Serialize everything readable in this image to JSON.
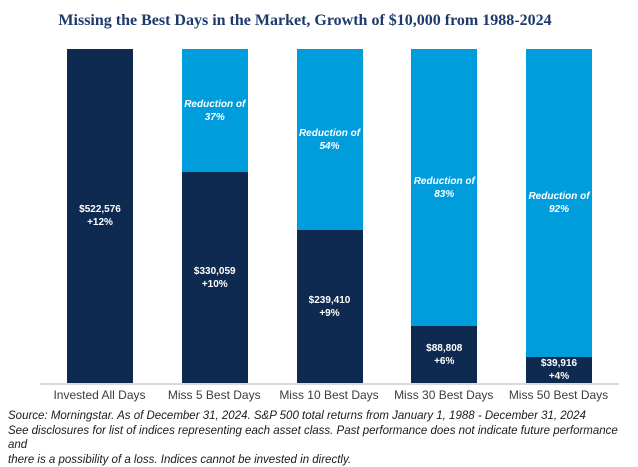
{
  "title": "Missing the Best Days in the Market, Growth of $10,000 from 1988-2024",
  "chart_data": {
    "type": "bar",
    "subtype": "stacked-column",
    "title": "Missing the Best Days in the Market, Growth of $10,000 from 1988-2024",
    "xlabel": "",
    "ylabel": "",
    "ylim": [
      0,
      522576
    ],
    "grid": false,
    "legend": "none",
    "axis_labels_hidden": true,
    "categories": [
      "Invested All Days",
      "Miss 5 Best Days",
      "Miss 10 Best Days",
      "Miss 30 Best Days",
      "Miss 50 Best Days"
    ],
    "bars": [
      {
        "category": "Invested All Days",
        "value": 522576,
        "value_label": "$522,576",
        "return_label": "+12%",
        "annualized_return_pct": 12,
        "reduction_pct": 0,
        "reduction_label": null,
        "reduction_pct_label": null
      },
      {
        "category": "Miss 5 Best Days",
        "value": 330059,
        "value_label": "$330,059",
        "return_label": "+10%",
        "annualized_return_pct": 10,
        "reduction_pct": 37,
        "reduction_label": "Reduction of",
        "reduction_pct_label": "37%"
      },
      {
        "category": "Miss 10 Best Days",
        "value": 239410,
        "value_label": "$239,410",
        "return_label": "+9%",
        "annualized_return_pct": 9,
        "reduction_pct": 54,
        "reduction_label": "Reduction of",
        "reduction_pct_label": "54%"
      },
      {
        "category": "Miss 30 Best Days",
        "value": 88808,
        "value_label": "$88,808",
        "return_label": "+6%",
        "annualized_return_pct": 6,
        "reduction_pct": 83,
        "reduction_label": "Reduction of",
        "reduction_pct_label": "83%"
      },
      {
        "category": "Miss 50 Best Days",
        "value": 39916,
        "value_label": "$39,916",
        "return_label": "+4%",
        "annualized_return_pct": 4,
        "reduction_pct": 92,
        "reduction_label": "Reduction of",
        "reduction_pct_label": "92%"
      }
    ],
    "colors": {
      "invested": "#0E2A50",
      "reduction": "#009DDC",
      "title": "#1E3A6D",
      "axis_line": "#D9D9D9"
    }
  },
  "footnote": {
    "line1": "Source: Morningstar. As of December 31, 2024. S&P 500 total returns from January 1, 1988 - December 31, 2024",
    "line2": "See disclosures for list of indices representing each asset class. Past performance does not indicate future performance and",
    "line3": "there is a possibility of a loss. Indices cannot be invested in directly."
  }
}
